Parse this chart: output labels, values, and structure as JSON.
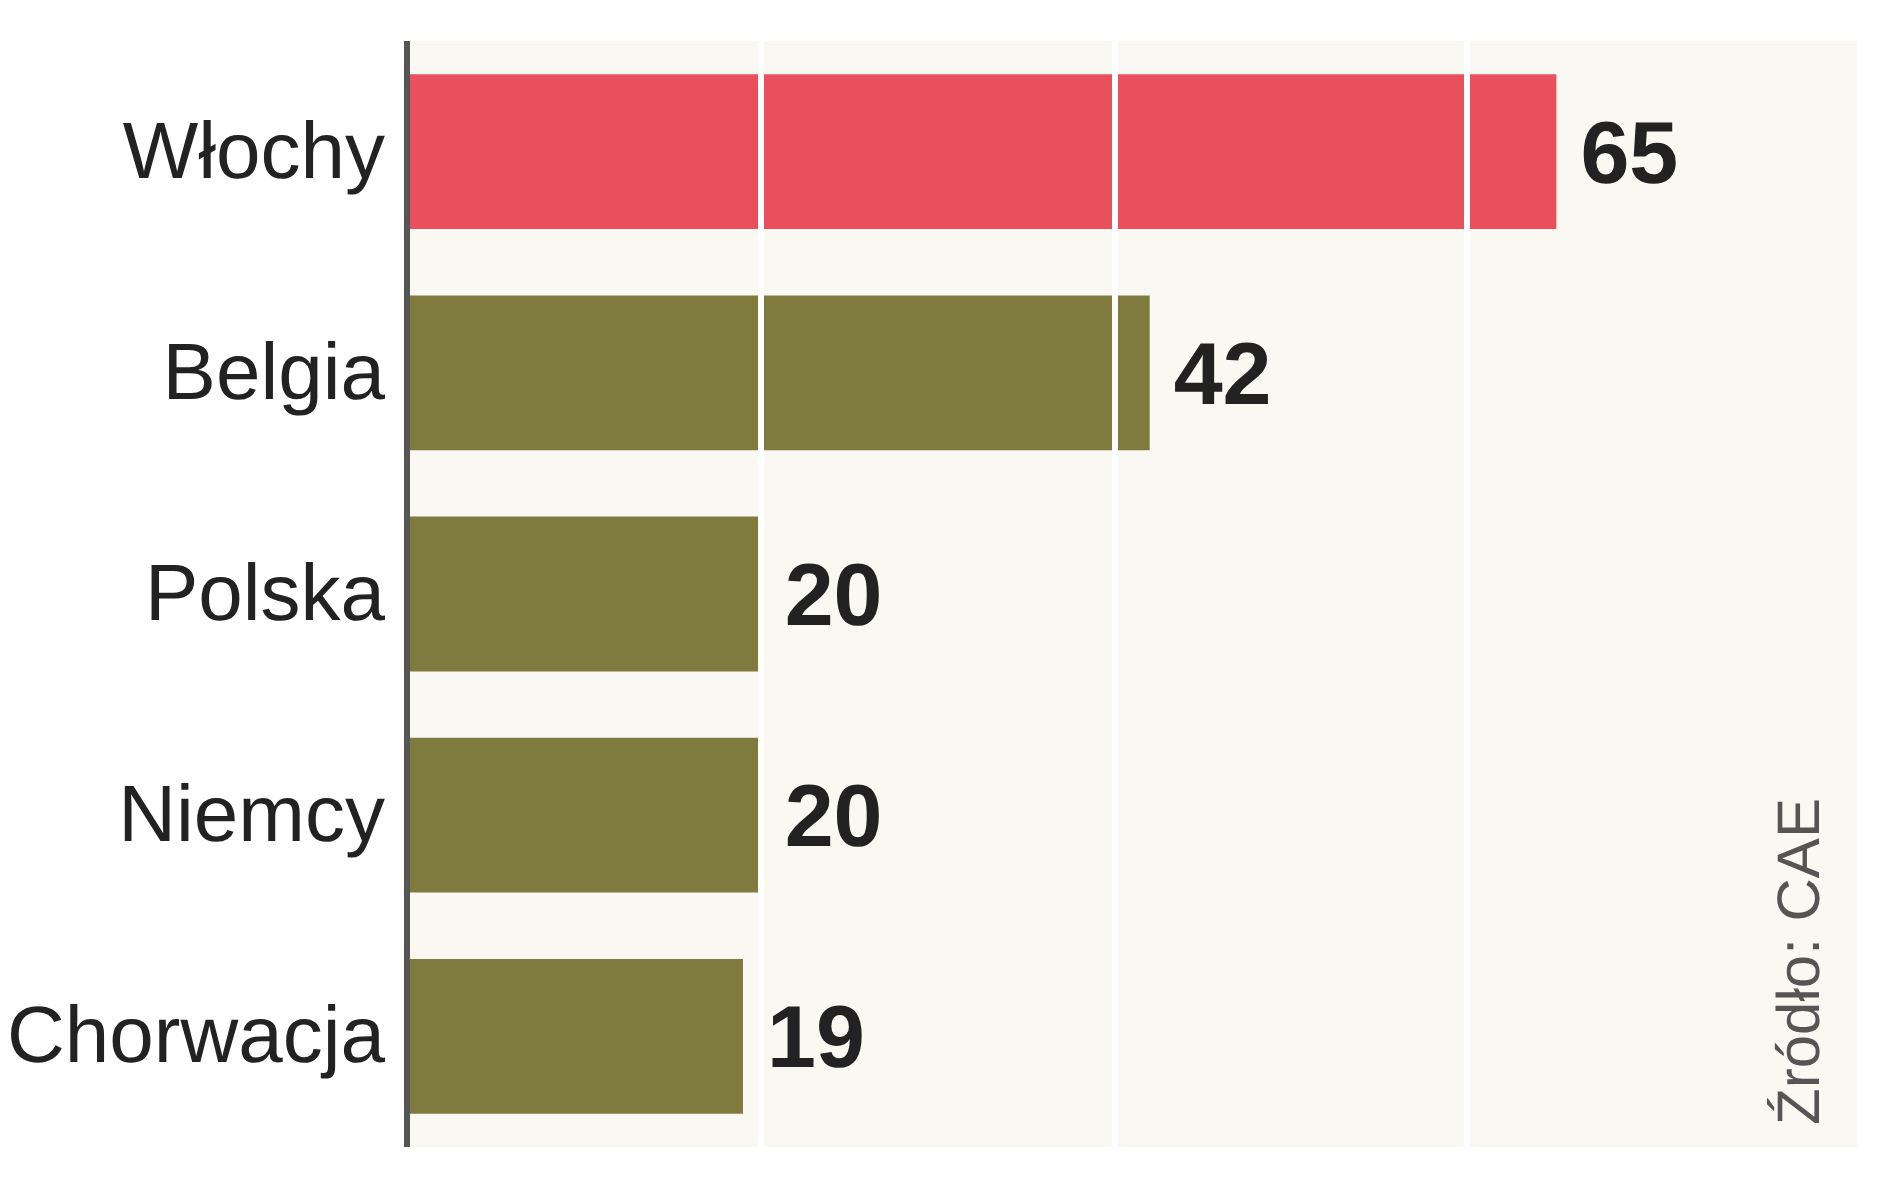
{
  "chart_data": {
    "type": "bar",
    "orientation": "horizontal",
    "categories": [
      "Włochy",
      "Belgia",
      "Polska",
      "Niemcy",
      "Chorwacja"
    ],
    "values": [
      65,
      42,
      20,
      20,
      19
    ],
    "colors": [
      "#e9505c",
      "#7f7b3e",
      "#7f7b3e",
      "#7f7b3e",
      "#7f7b3e"
    ],
    "xlim": [
      0,
      82
    ],
    "xticks": [
      {
        "value": 20,
        "label": null
      },
      {
        "value": 40,
        "label": null
      },
      {
        "value": 60,
        "label": null
      }
    ],
    "grid": "x",
    "tick_labels": "y",
    "data_labels": true,
    "annotations": [
      "Źródło: CAE"
    ]
  }
}
